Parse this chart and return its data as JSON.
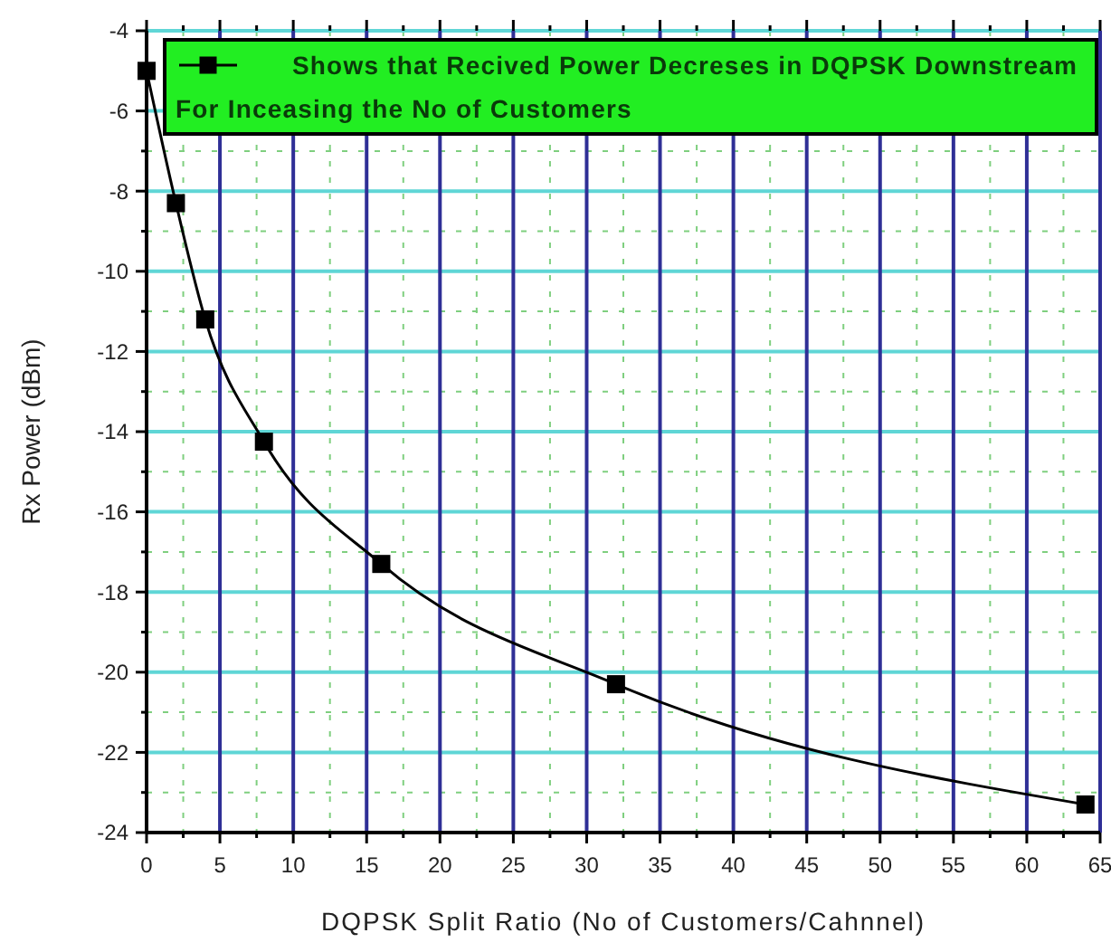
{
  "chart_data": {
    "type": "line",
    "xlabel": "DQPSK Split Ratio (No of Customers/Cahnnel)",
    "ylabel": "Rx Power (dBm)",
    "xlim": [
      0,
      65
    ],
    "xticks": [
      0,
      {
        "value": 2.5,
        "label": null
      },
      5,
      {
        "value": 7.5,
        "label": null
      },
      10,
      {
        "value": 12.5,
        "label": null
      },
      15,
      {
        "value": 17.5,
        "label": null
      },
      20,
      {
        "value": 22.5,
        "label": null
      },
      25,
      {
        "value": 27.5,
        "label": null
      },
      30,
      {
        "value": 32.5,
        "label": null
      },
      35,
      {
        "value": 37.5,
        "label": null
      },
      40,
      {
        "value": 42.5,
        "label": null
      },
      45,
      {
        "value": 47.5,
        "label": null
      },
      50,
      {
        "value": 52.5,
        "label": null
      },
      55,
      {
        "value": 57.5,
        "label": null
      },
      60,
      {
        "value": 62.5,
        "label": null
      },
      65
    ],
    "ylim": [
      -24,
      -4
    ],
    "yticks": [
      -24,
      {
        "value": -23,
        "label": null
      },
      -22,
      {
        "value": -21,
        "label": null
      },
      -20,
      {
        "value": -19,
        "label": null
      },
      -18,
      {
        "value": -17,
        "label": null
      },
      -16,
      {
        "value": -15,
        "label": null
      },
      -14,
      {
        "value": -13,
        "label": null
      },
      -12,
      {
        "value": -11,
        "label": null
      },
      -10,
      {
        "value": -9,
        "label": null
      },
      -8,
      {
        "value": -7,
        "label": null
      },
      -6,
      {
        "value": -5,
        "label": null
      },
      -4
    ],
    "grid": true,
    "legend": "top",
    "marker": "square",
    "line_style": "solid",
    "series": [
      {
        "name": "Shows that Recived Power Decreses  in DQPSK Downstream  For Inceasing the No of Customers",
        "color": "#000000",
        "x": [
          0,
          2,
          4,
          8,
          16,
          32,
          64
        ],
        "values": [
          -5.0,
          -8.3,
          -11.2,
          -14.25,
          -17.3,
          -20.3,
          -23.3
        ]
      }
    ]
  }
}
